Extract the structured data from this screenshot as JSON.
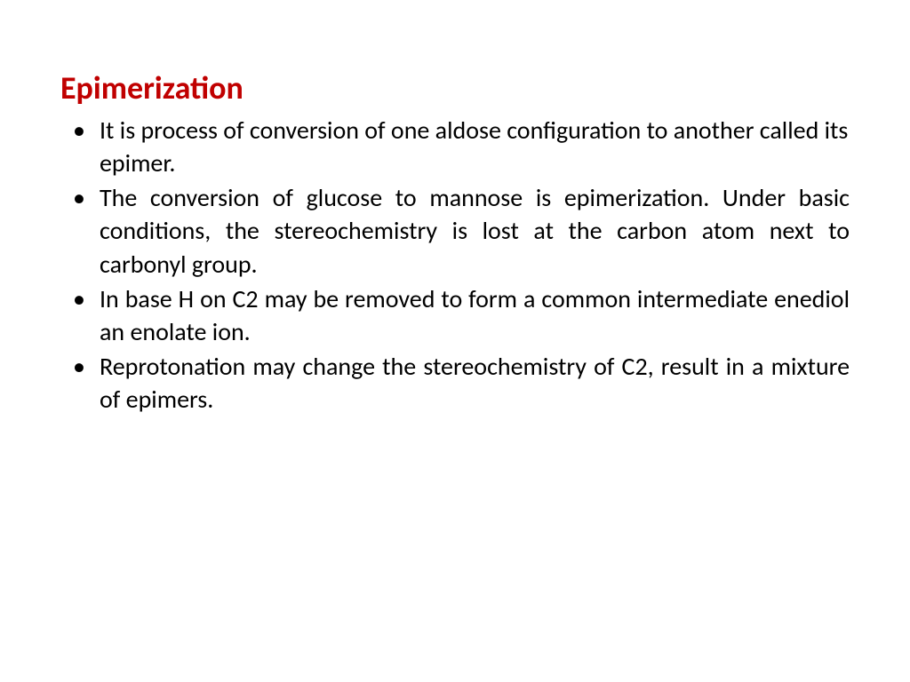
{
  "title": {
    "text": "Epimerization",
    "color": "#c00000",
    "fontsize": 36
  },
  "body": {
    "color": "#000000",
    "fontsize": 28,
    "line_height": 1.33,
    "bullets": [
      {
        "text": "It is process of conversion of one aldose configuration to another called its epimer.",
        "justify": false
      },
      {
        "text": "The conversion of glucose to mannose is epimerization. Under basic conditions, the stereochemistry is lost at the carbon atom next to carbonyl group.",
        "justify": true
      },
      {
        "text": "In base H on C2 may be removed to form a common intermediate enediol an enolate ion.",
        "justify": true
      },
      {
        "text": "Reprotonation may change the stereochemistry of C2, result in a mixture of epimers.",
        "justify": true
      }
    ]
  },
  "background_color": "#ffffff"
}
